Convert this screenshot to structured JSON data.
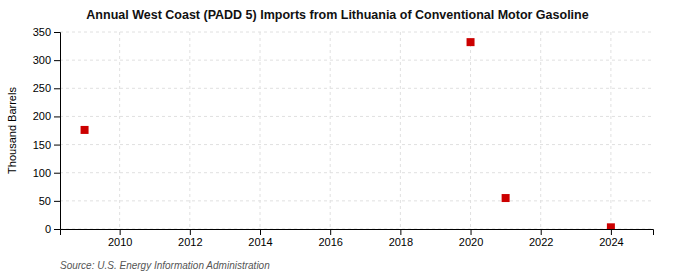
{
  "chart_data": {
    "type": "scatter",
    "title": "Annual West Coast (PADD 5) Imports from Lithuania of Conventional Motor Gasoline",
    "ylabel": "Thousand Barrels",
    "source": "Source: U.S. Energy Information Administration",
    "x": [
      2009,
      2020,
      2021,
      2024
    ],
    "values": [
      176,
      332,
      55,
      3
    ],
    "color": "#cc0000",
    "marker": "square",
    "xlim": [
      2008.3,
      2025.2
    ],
    "ylim": [
      0,
      350
    ],
    "xticks": [
      2010,
      2012,
      2014,
      2016,
      2018,
      2020,
      2022,
      2024
    ],
    "yticks": [
      0,
      50,
      100,
      150,
      200,
      250,
      300,
      350
    ],
    "grid": true
  }
}
